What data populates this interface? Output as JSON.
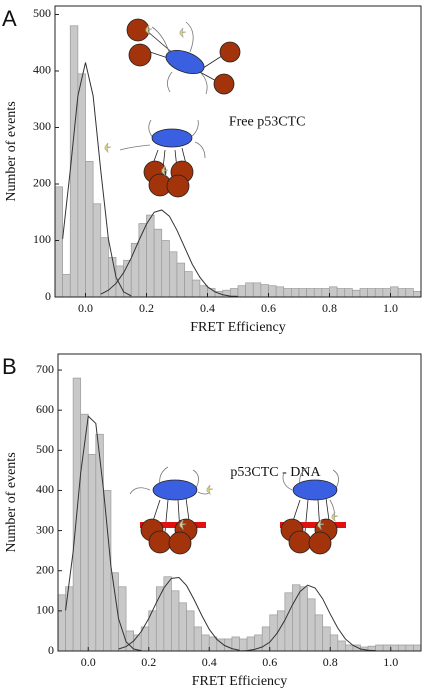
{
  "chart_data": [
    {
      "type": "histogram",
      "panel_label": "A",
      "annotation": "Free p53CTC",
      "xlabel": "FRET Efficiency",
      "ylabel": "Number of events",
      "color": "#c8c8c8",
      "bins": [
        -0.1,
        -0.075,
        -0.05,
        -0.025,
        0,
        0.025,
        0.05,
        0.075,
        0.1,
        0.125,
        0.15,
        0.175,
        0.2,
        0.225,
        0.25,
        0.275,
        0.3,
        0.325,
        0.35,
        0.375,
        0.4,
        0.425,
        0.45,
        0.475,
        0.5,
        0.525,
        0.55,
        0.575,
        0.6,
        0.625,
        0.65,
        0.675,
        0.7,
        0.725,
        0.75,
        0.775,
        0.8,
        0.825,
        0.85,
        0.875,
        0.9,
        0.925,
        0.95,
        0.975,
        1.0,
        1.025,
        1.05,
        1.075,
        1.1
      ],
      "counts": [
        195,
        40,
        480,
        395,
        240,
        165,
        105,
        70,
        55,
        65,
        95,
        130,
        145,
        120,
        100,
        80,
        60,
        45,
        30,
        20,
        15,
        10,
        12,
        15,
        20,
        25,
        25,
        22,
        20,
        18,
        15,
        15,
        15,
        15,
        15,
        15,
        18,
        15,
        15,
        12,
        15,
        15,
        15,
        15,
        18,
        15,
        15,
        10
      ],
      "series": [
        {
          "color": "#333333",
          "x": [
            -0.075,
            -0.05,
            -0.025,
            0,
            0.025,
            0.05,
            0.075,
            0.1,
            0.125,
            0.15
          ],
          "values": [
            103,
            224,
            356,
            415,
            356,
            224,
            103,
            35,
            9,
            2
          ]
        },
        {
          "color": "#333333",
          "x": [
            0.05,
            0.075,
            0.1,
            0.125,
            0.15,
            0.175,
            0.2,
            0.225,
            0.25,
            0.275,
            0.3,
            0.325,
            0.35,
            0.375,
            0.4,
            0.425,
            0.45,
            0.475,
            0.5
          ],
          "values": [
            5,
            12,
            24,
            43,
            69,
            100,
            129,
            150,
            154,
            143,
            118,
            88,
            58,
            35,
            18,
            9,
            4,
            1.5,
            1
          ]
        }
      ],
      "xlim": [
        -0.1,
        1.1
      ],
      "ylim": [
        0,
        515
      ],
      "xticks": [
        {
          "value": 0,
          "label": "0.0"
        },
        0.2,
        0.4,
        0.6,
        0.8,
        {
          "value": 1,
          "label": "1.0"
        }
      ],
      "yticks": [
        0,
        100,
        200,
        300,
        400,
        500
      ]
    },
    {
      "type": "histogram",
      "panel_label": "B",
      "annotation": "p53CTC - DNA",
      "xlabel": "FRET Efficiency",
      "ylabel": "Number of events",
      "color": "#c8c8c8",
      "bins": [
        -0.1,
        -0.075,
        -0.05,
        -0.025,
        0,
        0.025,
        0.05,
        0.075,
        0.1,
        0.125,
        0.15,
        0.175,
        0.2,
        0.225,
        0.25,
        0.275,
        0.3,
        0.325,
        0.35,
        0.375,
        0.4,
        0.425,
        0.45,
        0.475,
        0.5,
        0.525,
        0.55,
        0.575,
        0.6,
        0.625,
        0.65,
        0.675,
        0.7,
        0.725,
        0.75,
        0.775,
        0.8,
        0.825,
        0.85,
        0.875,
        0.9,
        0.925,
        0.95,
        0.975,
        1.0,
        1.025,
        1.05,
        1.075,
        1.1
      ],
      "counts": [
        140,
        160,
        680,
        590,
        490,
        540,
        400,
        195,
        160,
        50,
        40,
        60,
        100,
        160,
        185,
        150,
        120,
        100,
        60,
        40,
        35,
        30,
        30,
        35,
        30,
        35,
        40,
        60,
        90,
        100,
        145,
        165,
        160,
        130,
        90,
        60,
        40,
        25,
        15,
        15,
        10,
        12,
        15,
        15,
        15,
        15,
        15,
        15
      ],
      "series": [
        {
          "color": "#333333",
          "x": [
            -0.075,
            -0.05,
            -0.025,
            0,
            0.025,
            0.05,
            0.075,
            0.1,
            0.125,
            0.15,
            0.175
          ],
          "values": [
            101,
            247,
            444,
            585,
            567,
            404,
            211,
            81,
            23,
            5,
            1
          ]
        },
        {
          "color": "#333333",
          "x": [
            0.1,
            0.125,
            0.15,
            0.175,
            0.2,
            0.225,
            0.25,
            0.275,
            0.3,
            0.325,
            0.35,
            0.375,
            0.4,
            0.425,
            0.45,
            0.475,
            0.5
          ],
          "values": [
            5,
            11,
            25,
            48,
            81,
            120,
            157,
            181,
            183,
            163,
            128,
            89,
            54,
            29,
            14,
            6,
            2
          ]
        },
        {
          "color": "#333333",
          "x": [
            0.5,
            0.525,
            0.55,
            0.575,
            0.6,
            0.625,
            0.65,
            0.675,
            0.7,
            0.725,
            0.75,
            0.775,
            0.8,
            0.825,
            0.85,
            0.875,
            0.9,
            0.925,
            0.95
          ],
          "values": [
            0,
            1,
            4,
            10,
            22,
            45,
            77,
            115,
            148,
            164,
            157,
            130,
            92,
            57,
            30,
            14,
            5,
            2,
            1
          ]
        }
      ],
      "xlim": [
        -0.1,
        1.1
      ],
      "ylim": [
        0,
        740
      ],
      "xticks": [
        {
          "value": 0,
          "label": "0.0"
        },
        0.2,
        0.4,
        0.6,
        0.8,
        {
          "value": 1,
          "label": "1.0"
        }
      ],
      "yticks": [
        0,
        100,
        200,
        300,
        400,
        500,
        600,
        700
      ]
    }
  ]
}
